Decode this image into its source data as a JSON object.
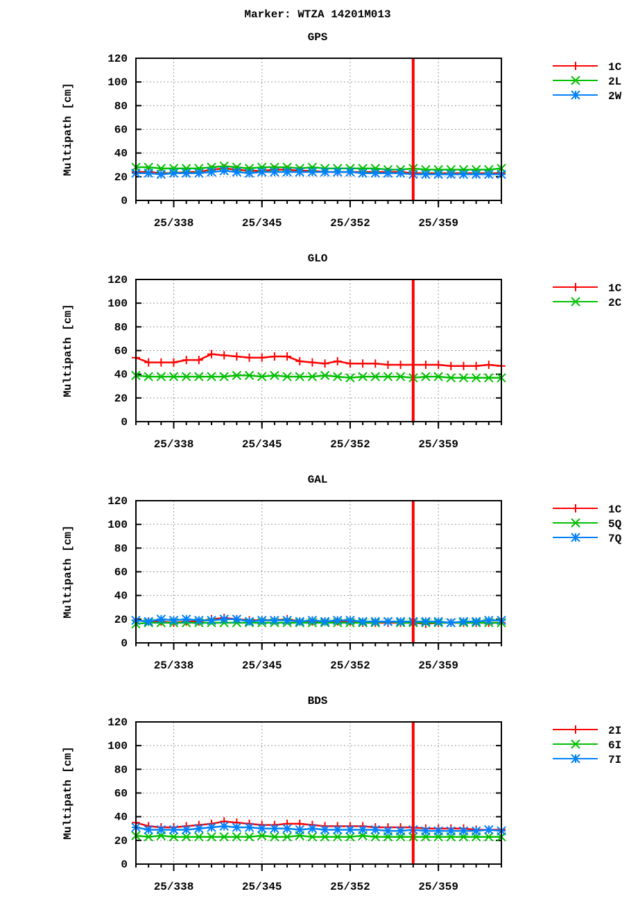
{
  "title": "Marker: WTZA 14201M013",
  "chart_data": [
    {
      "type": "line",
      "title": "GPS",
      "ylabel": "Multipath [cm]",
      "ylim": [
        0,
        120
      ],
      "yticks": [
        0,
        20,
        40,
        60,
        80,
        100,
        120
      ],
      "xlim": [
        335,
        364
      ],
      "xticks": [
        338,
        345,
        352,
        359
      ],
      "xtick_labels": [
        "25/338",
        "25/345",
        "25/352",
        "25/359"
      ],
      "grid": true,
      "legend": "right",
      "marker_line_day": 357,
      "x_start": 335,
      "series": [
        {
          "name": "1C",
          "color": "#ff0000",
          "marker": "plus",
          "values": [
            24,
            24,
            23,
            23,
            24,
            24,
            26,
            27,
            26,
            25,
            25,
            26,
            26,
            25,
            25,
            24,
            24,
            24,
            24,
            24,
            24,
            24,
            23,
            23,
            23,
            23,
            23,
            23,
            23,
            23
          ]
        },
        {
          "name": "2L",
          "color": "#00c000",
          "marker": "cross",
          "values": [
            28,
            28,
            27,
            27,
            27,
            27,
            28,
            29,
            28,
            27,
            28,
            28,
            28,
            27,
            28,
            27,
            27,
            27,
            27,
            27,
            26,
            26,
            27,
            26,
            26,
            26,
            26,
            26,
            26,
            27
          ]
        },
        {
          "name": "2W",
          "color": "#0080ff",
          "marker": "star",
          "values": [
            23,
            23,
            22,
            23,
            23,
            23,
            24,
            25,
            24,
            23,
            24,
            24,
            24,
            24,
            24,
            24,
            24,
            24,
            23,
            23,
            23,
            23,
            22,
            22,
            22,
            22,
            22,
            22,
            22,
            22
          ]
        }
      ]
    },
    {
      "type": "line",
      "title": "GLO",
      "ylabel": "Multipath [cm]",
      "ylim": [
        0,
        120
      ],
      "yticks": [
        0,
        20,
        40,
        60,
        80,
        100,
        120
      ],
      "xlim": [
        335,
        364
      ],
      "xticks": [
        338,
        345,
        352,
        359
      ],
      "xtick_labels": [
        "25/338",
        "25/345",
        "25/352",
        "25/359"
      ],
      "grid": true,
      "legend": "right",
      "marker_line_day": 357,
      "x_start": 335,
      "series": [
        {
          "name": "1C",
          "color": "#ff0000",
          "marker": "plus",
          "values": [
            54,
            50,
            50,
            50,
            52,
            52,
            57,
            56,
            55,
            54,
            54,
            55,
            55,
            51,
            50,
            49,
            51,
            49,
            49,
            49,
            48,
            48,
            48,
            48,
            48,
            47,
            47,
            47,
            48,
            47
          ]
        },
        {
          "name": "2C",
          "color": "#00c000",
          "marker": "cross",
          "values": [
            39,
            38,
            38,
            38,
            38,
            38,
            38,
            38,
            39,
            39,
            38,
            39,
            38,
            38,
            38,
            39,
            38,
            37,
            38,
            38,
            38,
            38,
            37,
            38,
            38,
            37,
            37,
            37,
            37,
            37
          ]
        }
      ]
    },
    {
      "type": "line",
      "title": "GAL",
      "ylabel": "Multipath [cm]",
      "ylim": [
        0,
        120
      ],
      "yticks": [
        0,
        20,
        40,
        60,
        80,
        100,
        120
      ],
      "xlim": [
        335,
        364
      ],
      "xticks": [
        338,
        345,
        352,
        359
      ],
      "xtick_labels": [
        "25/338",
        "25/345",
        "25/352",
        "25/359"
      ],
      "grid": true,
      "legend": "right",
      "marker_line_day": 357,
      "x_start": 335,
      "series": [
        {
          "name": "1C",
          "color": "#ff0000",
          "marker": "plus",
          "values": [
            19,
            18,
            18,
            17,
            18,
            18,
            20,
            21,
            20,
            19,
            19,
            19,
            20,
            18,
            18,
            18,
            18,
            18,
            17,
            17,
            17,
            17,
            17,
            16,
            17,
            17,
            17,
            17,
            17,
            17
          ]
        },
        {
          "name": "5Q",
          "color": "#00c000",
          "marker": "cross",
          "values": [
            16,
            17,
            17,
            17,
            17,
            17,
            17,
            17,
            17,
            17,
            17,
            17,
            17,
            17,
            17,
            17,
            17,
            17,
            17,
            17,
            18,
            17,
            17,
            17,
            17,
            17,
            17,
            17,
            17,
            17
          ]
        },
        {
          "name": "7Q",
          "color": "#0080ff",
          "marker": "star",
          "values": [
            19,
            18,
            20,
            19,
            20,
            19,
            19,
            20,
            20,
            18,
            19,
            19,
            19,
            18,
            19,
            18,
            19,
            19,
            18,
            18,
            18,
            18,
            18,
            18,
            18,
            17,
            18,
            18,
            19,
            19
          ]
        }
      ]
    },
    {
      "type": "line",
      "title": "BDS",
      "ylabel": "Multipath [cm]",
      "ylim": [
        0,
        120
      ],
      "yticks": [
        0,
        20,
        40,
        60,
        80,
        100,
        120
      ],
      "xlim": [
        335,
        364
      ],
      "xticks": [
        338,
        345,
        352,
        359
      ],
      "xtick_labels": [
        "25/338",
        "25/345",
        "25/352",
        "25/359"
      ],
      "grid": true,
      "legend": "right",
      "marker_line_day": 357,
      "x_start": 335,
      "series": [
        {
          "name": "2I",
          "color": "#ff0000",
          "marker": "plus",
          "values": [
            35,
            32,
            31,
            31,
            32,
            33,
            34,
            36,
            35,
            34,
            33,
            33,
            34,
            34,
            33,
            32,
            32,
            32,
            32,
            31,
            31,
            31,
            31,
            30,
            30,
            30,
            30,
            29,
            29,
            29
          ]
        },
        {
          "name": "6I",
          "color": "#00c000",
          "marker": "cross",
          "values": [
            24,
            23,
            24,
            23,
            23,
            23,
            23,
            23,
            23,
            23,
            24,
            23,
            23,
            24,
            23,
            23,
            23,
            23,
            24,
            23,
            23,
            23,
            23,
            23,
            23,
            23,
            23,
            23,
            23,
            23
          ]
        },
        {
          "name": "7I",
          "color": "#0080ff",
          "marker": "star",
          "values": [
            31,
            29,
            29,
            29,
            29,
            30,
            31,
            32,
            31,
            31,
            30,
            30,
            30,
            29,
            30,
            29,
            29,
            29,
            29,
            29,
            28,
            28,
            29,
            28,
            28,
            28,
            28,
            28,
            29,
            28
          ]
        }
      ]
    }
  ]
}
